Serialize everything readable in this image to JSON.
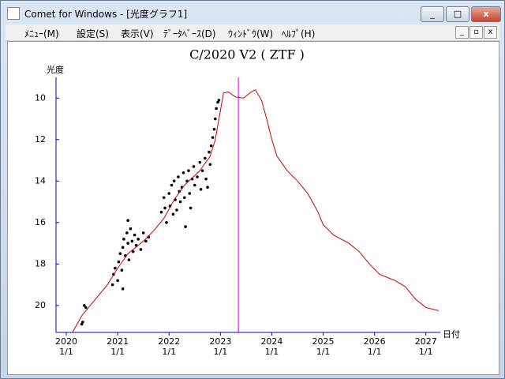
{
  "window": {
    "title": "Comet for Windows - [光度グラフ1]"
  },
  "menu": [
    "ﾒﾆｭｰ(M)",
    "設定(S)",
    "表示(V)",
    "ﾃﾞｰﾀﾍﾞｰｽ(D)",
    "ｳｨﾝﾄﾞｳ(W)",
    "ﾍﾙﾌﾟ(H)"
  ],
  "chart_data": {
    "type": "scatter",
    "title": "C/2020 V2 ( ZTF )",
    "ylabel": "光度",
    "xlabel": "日付",
    "xlim": [
      2019.8,
      2027.28
    ],
    "ylim": [
      21.3,
      9.0
    ],
    "xticks": [
      2020,
      2021,
      2022,
      2023,
      2024,
      2025,
      2026,
      2027
    ],
    "xtick_sublabels": [
      "1/1",
      "1/1",
      "1/1",
      "1/1",
      "1/1",
      "1/1",
      "1/1",
      "1/1"
    ],
    "yticks": [
      10,
      12,
      14,
      16,
      18,
      20
    ],
    "axis_color": "#0000cc",
    "vline": {
      "x": 2023.35,
      "color": "#cc00cc"
    },
    "series": [
      {
        "type": "scatter",
        "color": "#000000",
        "x": [
          2020.35,
          2020.32,
          2020.3,
          2020.38,
          2020.9,
          2020.92,
          2020.95,
          2021.0,
          2021.02,
          2021.05,
          2021.08,
          2021.1,
          2021.12,
          2021.15,
          2021.18,
          2021.2,
          2021.22,
          2021.25,
          2021.28,
          2021.3,
          2021.33,
          2021.36,
          2021.4,
          2021.45,
          2021.5,
          2021.55,
          2021.6,
          2021.2,
          2021.1,
          2021.85,
          2021.9,
          2021.92,
          2021.95,
          2022.0,
          2022.02,
          2022.05,
          2022.08,
          2022.1,
          2022.12,
          2022.15,
          2022.18,
          2022.2,
          2022.22,
          2022.25,
          2022.28,
          2022.3,
          2022.32,
          2022.35,
          2022.38,
          2022.4,
          2022.42,
          2022.45,
          2022.48,
          2022.5,
          2022.55,
          2022.6,
          2022.62,
          2022.65,
          2022.7,
          2022.72,
          2022.75,
          2022.78,
          2022.8,
          2022.82,
          2022.85,
          2022.88,
          2022.9,
          2022.92,
          2022.95,
          2022.97
        ],
        "values": [
          20.0,
          20.8,
          20.9,
          20.1,
          19.0,
          18.5,
          18.2,
          18.8,
          17.9,
          17.5,
          18.3,
          17.2,
          16.8,
          17.6,
          16.5,
          17.0,
          17.8,
          16.3,
          16.9,
          17.4,
          16.6,
          17.1,
          16.8,
          17.3,
          16.5,
          16.9,
          16.7,
          15.9,
          19.2,
          15.5,
          14.8,
          15.3,
          16.0,
          14.6,
          15.2,
          14.2,
          15.6,
          14.0,
          14.9,
          15.4,
          13.8,
          14.5,
          15.0,
          14.3,
          13.6,
          14.8,
          16.2,
          14.0,
          13.5,
          14.6,
          15.3,
          13.9,
          13.3,
          14.2,
          13.8,
          13.1,
          14.4,
          13.5,
          12.9,
          13.9,
          14.3,
          12.6,
          13.2,
          12.3,
          11.9,
          11.5,
          11.0,
          10.5,
          10.2,
          10.1
        ]
      },
      {
        "type": "line",
        "color": "#cc0000",
        "x": [
          2020.12,
          2020.3,
          2020.5,
          2020.8,
          2021.0,
          2021.2,
          2021.5,
          2021.7,
          2021.9,
          2022.1,
          2022.3,
          2022.6,
          2022.8,
          2022.9,
          2023.0,
          2023.06,
          2023.15,
          2023.3,
          2023.45,
          2023.6,
          2023.68,
          2023.8,
          2023.9,
          2024.0,
          2024.1,
          2024.3,
          2024.5,
          2024.7,
          2024.9,
          2025.0,
          2025.2,
          2025.5,
          2025.7,
          2025.9,
          2026.1,
          2026.4,
          2026.6,
          2026.8,
          2027.0,
          2027.25
        ],
        "values": [
          21.3,
          20.5,
          19.9,
          19.0,
          18.2,
          17.5,
          16.9,
          16.4,
          15.8,
          14.9,
          14.2,
          13.5,
          12.8,
          12.0,
          10.6,
          9.75,
          9.7,
          9.95,
          10.0,
          9.7,
          9.6,
          10.1,
          11.0,
          12.0,
          12.8,
          13.5,
          14.0,
          14.6,
          15.5,
          16.1,
          16.6,
          17.0,
          17.4,
          18.0,
          18.5,
          18.8,
          19.1,
          19.7,
          20.1,
          20.25
        ]
      }
    ]
  }
}
